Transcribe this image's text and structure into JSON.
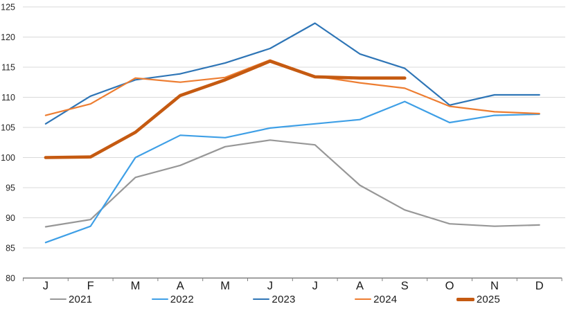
{
  "chart_data": {
    "type": "line",
    "title": "",
    "categories": [
      "J",
      "F",
      "M",
      "A",
      "M",
      "J",
      "J",
      "A",
      "S",
      "O",
      "N",
      "D"
    ],
    "ylim": [
      80,
      125
    ],
    "ytick_step": 5,
    "yticks": [
      80,
      85,
      90,
      95,
      100,
      105,
      110,
      115,
      120,
      125
    ],
    "grid": true,
    "grid_color": "#d9d9d9",
    "axis_color": "#7f7f7f",
    "tick_label_color": "#262626",
    "legend_position": "bottom",
    "series": [
      {
        "name": "2021",
        "color": "#979797",
        "thick": false,
        "values": [
          88.5,
          89.7,
          96.7,
          98.7,
          101.8,
          102.9,
          102.1,
          95.4,
          91.3,
          89.0,
          88.6,
          88.8
        ]
      },
      {
        "name": "2022",
        "color": "#3e9fe6",
        "thick": false,
        "values": [
          85.9,
          88.6,
          100.0,
          103.7,
          103.3,
          104.9,
          105.6,
          106.3,
          109.3,
          105.8,
          107.0,
          107.2
        ]
      },
      {
        "name": "2023",
        "color": "#2e75b6",
        "thick": false,
        "values": [
          105.6,
          110.2,
          112.9,
          113.9,
          115.7,
          118.1,
          122.3,
          117.2,
          114.8,
          108.7,
          110.4,
          110.4
        ]
      },
      {
        "name": "2024",
        "color": "#ed7d31",
        "thick": false,
        "values": [
          107.0,
          108.9,
          113.2,
          112.5,
          113.3,
          116.2,
          113.5,
          112.4,
          111.5,
          108.5,
          107.6,
          107.3
        ]
      },
      {
        "name": "2025",
        "color": "#c55a11",
        "thick": true,
        "values": [
          100.0,
          100.1,
          104.2,
          110.3,
          112.9,
          116.0,
          113.4,
          113.2,
          113.2
        ]
      }
    ]
  }
}
